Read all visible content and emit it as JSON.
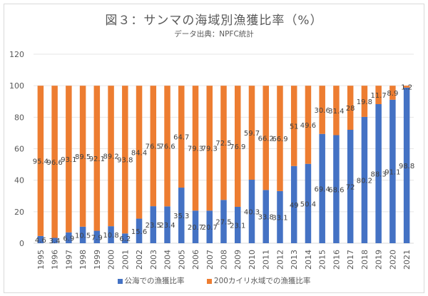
{
  "chart_data": {
    "type": "bar",
    "stacked": true,
    "title": "図３：サンマの海域別漁獲比率（%）",
    "subtitle": "データ出典：NPFC統計",
    "xlabel": "",
    "ylabel": "",
    "ylim": [
      0,
      120
    ],
    "yticks": [
      0,
      20,
      40,
      60,
      80,
      100,
      120
    ],
    "grid": true,
    "legend_position": "bottom",
    "categories": [
      "1995",
      "1996",
      "1997",
      "1998",
      "1999",
      "2000",
      "2001",
      "2002",
      "2003",
      "2004",
      "2005",
      "2006",
      "2007",
      "2008",
      "2009",
      "2010",
      "2011",
      "2012",
      "2013",
      "2014",
      "2015",
      "2016",
      "2017",
      "2018",
      "2019",
      "2020",
      "2021"
    ],
    "series": [
      {
        "name": "公海での漁獲比率",
        "color": "#4472c4",
        "values": [
          4.6,
          3.4,
          6.9,
          10.5,
          7.9,
          10.8,
          6.2,
          15.6,
          23.5,
          23.4,
          35.3,
          20.7,
          20.7,
          27.5,
          23.1,
          40.3,
          33.8,
          33.1,
          49,
          50.4,
          69.4,
          68.6,
          72,
          80.2,
          88.3,
          91.1,
          98.8
        ]
      },
      {
        "name": "200カイリ水域での漁獲比率",
        "color": "#ed7d31",
        "values": [
          95.4,
          96.6,
          93.1,
          89.5,
          92.1,
          89.2,
          93.8,
          84.4,
          76.5,
          76.6,
          64.7,
          79.3,
          79.3,
          72.5,
          76.9,
          59.7,
          66.2,
          66.9,
          51,
          49.6,
          30.6,
          31.4,
          28,
          19.8,
          11.7,
          8.9,
          1.2
        ]
      }
    ]
  }
}
